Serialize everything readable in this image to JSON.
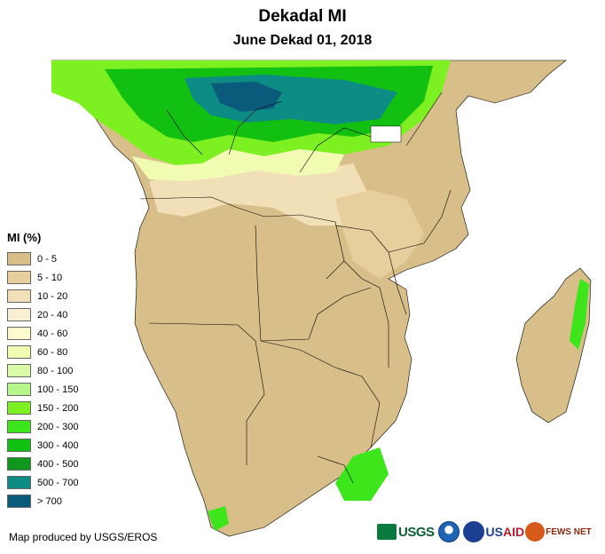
{
  "header": {
    "title": "Dekadal MI",
    "subtitle": "June Dekad 01, 2018"
  },
  "legend": {
    "title": "MI (%)",
    "items": [
      {
        "label": "0 - 5",
        "color": "#d8bf8a"
      },
      {
        "label": "5 - 10",
        "color": "#e6cf9c"
      },
      {
        "label": "10 - 20",
        "color": "#f1dfb8"
      },
      {
        "label": "20 - 40",
        "color": "#faefd2"
      },
      {
        "label": "40 - 60",
        "color": "#fdfcce"
      },
      {
        "label": "60 - 80",
        "color": "#f1fcb2"
      },
      {
        "label": "80 - 100",
        "color": "#dafca8"
      },
      {
        "label": "100 - 150",
        "color": "#b6f68a"
      },
      {
        "label": "150 - 200",
        "color": "#7df022"
      },
      {
        "label": "200 - 300",
        "color": "#3ce61a"
      },
      {
        "label": "300 - 400",
        "color": "#12c012"
      },
      {
        "label": "400 - 500",
        "color": "#10981e"
      },
      {
        "label": "500 - 700",
        "color": "#0c8c84"
      },
      {
        "label": "> 700",
        "color": "#0a5a7c"
      }
    ]
  },
  "footer": {
    "credit": "Map produced by USGS/EROS",
    "logos": {
      "usgs": "USGS",
      "usaid_us": "US",
      "usaid_aid": "AID",
      "fews": "FEWS NET"
    }
  }
}
